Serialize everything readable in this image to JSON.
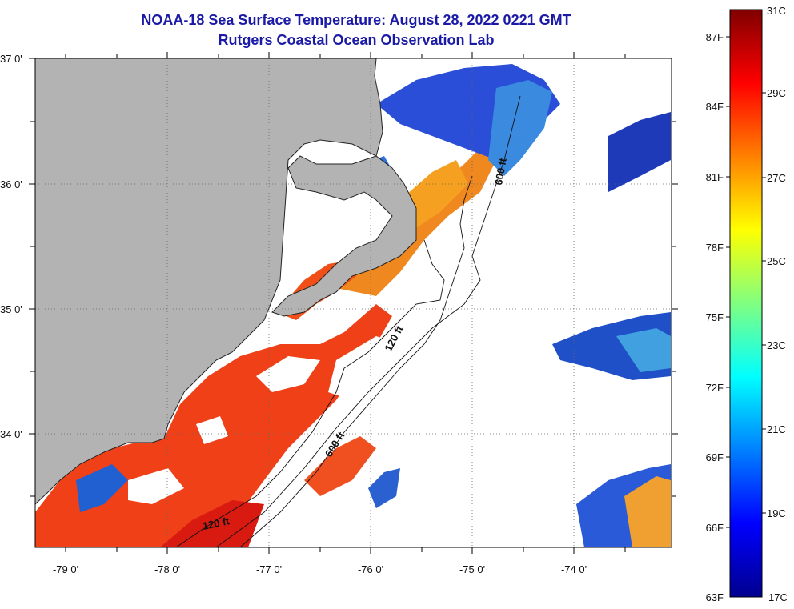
{
  "header": {
    "title": "NOAA-18 Sea Surface Temperature:  August 28, 2022 0221 GMT",
    "subtitle": "Rutgers Coastal Ocean Observation Lab"
  },
  "axes": {
    "longitude_ticks": [
      "-79 0'",
      "-78 0'",
      "-77 0'",
      "-76 0'",
      "-75 0'",
      "-74 0'"
    ],
    "latitude_ticks": [
      "37 0'",
      "36 0'",
      "35 0'",
      "34 0'"
    ]
  },
  "isobaths": {
    "label_120_upper": "120 ft",
    "label_600_lower": "600 ft",
    "label_120_lower": "120 ft",
    "label_600_upper": "600 ft"
  },
  "colorbar": {
    "celsius": [
      "31C",
      "29C",
      "27C",
      "25C",
      "23C",
      "21C",
      "19C",
      "17C"
    ],
    "fahrenheit": [
      "87F",
      "84F",
      "81F",
      "78F",
      "75F",
      "72F",
      "69F",
      "66F",
      "63F"
    ],
    "colors": [
      "#00008f",
      "#0000ff",
      "#0080ff",
      "#00ffff",
      "#80ff80",
      "#ffff00",
      "#ff8000",
      "#ff0000",
      "#800000"
    ]
  },
  "colors": {
    "land": "#b3b3b3",
    "cloud": "#ffffff",
    "title": "#1a1aa6"
  }
}
